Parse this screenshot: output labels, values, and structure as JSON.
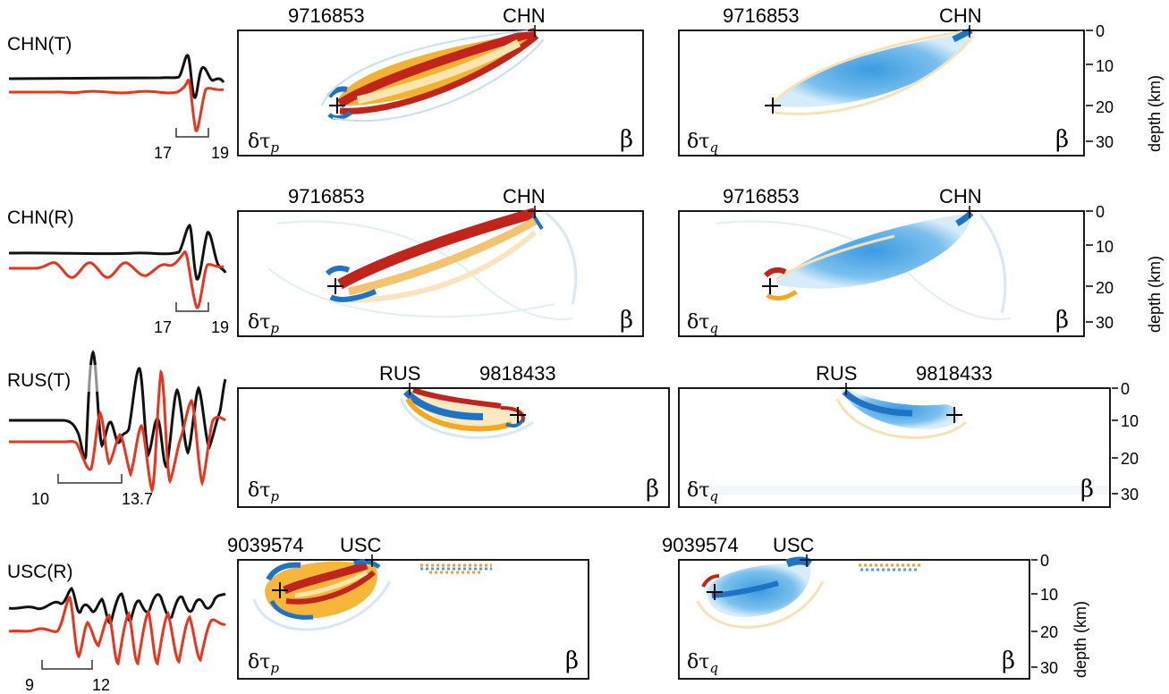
{
  "rows": [
    {
      "label": "CHN(T)",
      "time_start": "17",
      "time_end": "19",
      "panels": [
        {
          "left_label": "9716853",
          "right_label": "CHN",
          "kernel_symbol": "δτ",
          "kernel_sub": "p",
          "material": "β",
          "polarity": "mixed"
        },
        {
          "left_label": "9716853",
          "right_label": "CHN",
          "kernel_symbol": "δτ",
          "kernel_sub": "q",
          "material": "β",
          "polarity": "negative"
        }
      ]
    },
    {
      "label": "CHN(R)",
      "time_start": "17",
      "time_end": "19",
      "panels": [
        {
          "left_label": "9716853",
          "right_label": "CHN",
          "kernel_symbol": "δτ",
          "kernel_sub": "p",
          "material": "β",
          "polarity": "mixed"
        },
        {
          "left_label": "9716853",
          "right_label": "CHN",
          "kernel_symbol": "δτ",
          "kernel_sub": "q",
          "material": "β",
          "polarity": "negative"
        }
      ]
    },
    {
      "label": "RUS(T)",
      "time_start": "10",
      "time_end": "13.7",
      "panels": [
        {
          "left_label": "RUS",
          "right_label": "9818433",
          "kernel_symbol": "δτ",
          "kernel_sub": "p",
          "material": "β",
          "polarity": "mixed"
        },
        {
          "left_label": "RUS",
          "right_label": "9818433",
          "kernel_symbol": "δτ",
          "kernel_sub": "q",
          "material": "β",
          "polarity": "negative"
        }
      ]
    },
    {
      "label": "USC(R)",
      "time_start": "9",
      "time_end": "12",
      "panels": [
        {
          "left_label": "9039574",
          "right_label": "USC",
          "kernel_symbol": "δτ",
          "kernel_sub": "p",
          "material": "β",
          "polarity": "mixed"
        },
        {
          "left_label": "9039574",
          "right_label": "USC",
          "kernel_symbol": "δτ",
          "kernel_sub": "q",
          "material": "β",
          "polarity": "negative"
        }
      ]
    }
  ],
  "depth_axis": {
    "label": "depth (km)",
    "ticks": [
      "0",
      "10",
      "20",
      "30"
    ]
  },
  "colors": {
    "observed_trace": "#111111",
    "synthetic_trace": "#e8351e",
    "positive_kernel": "#c0241a",
    "positive_kernel_mid": "#f2a216",
    "negative_kernel": "#1f73c4",
    "negative_kernel_light": "#4aa3e0"
  }
}
